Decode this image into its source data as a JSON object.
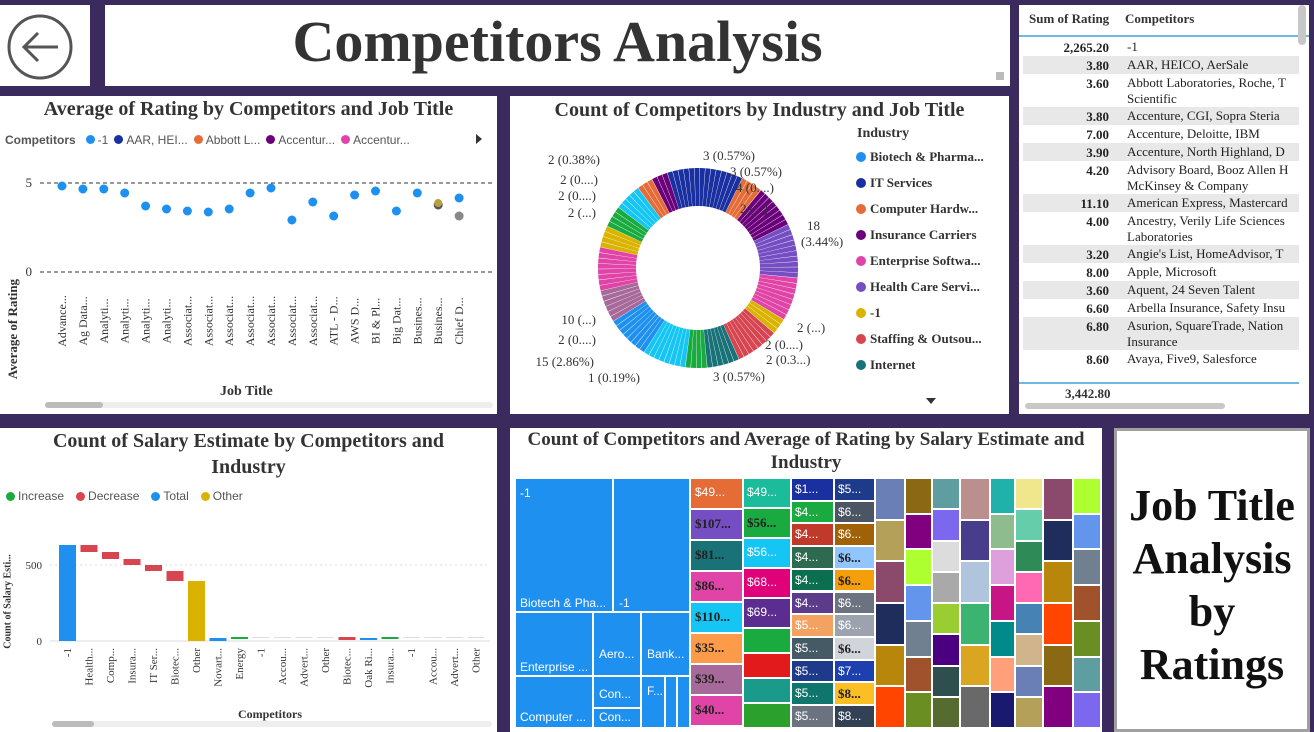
{
  "header": {
    "back_icon": "arrow-left-circle-icon",
    "title": "Competitors Analysis"
  },
  "scatter": {
    "title": "Average of Rating by Competitors and Job Title",
    "legend_label": "Competitors",
    "legend_items": [
      {
        "name": "-1",
        "color": "#1e90f0"
      },
      {
        "name": "AAR, HEI...",
        "color": "#1a2fa0"
      },
      {
        "name": "Abbott L...",
        "color": "#e66c37"
      },
      {
        "name": "Accentur...",
        "color": "#6b007b"
      },
      {
        "name": "Accentur...",
        "color": "#e044a7"
      }
    ],
    "ylabel": "Average of Rating",
    "xlabel": "Job Title",
    "yticks": [
      "5",
      "0"
    ],
    "categories": [
      "Advance...",
      "Ag Data...",
      "Analyti...",
      "Analyti...",
      "Analyti...",
      "Analyti...",
      "Associat...",
      "Associat...",
      "Associat...",
      "Associat...",
      "Associat...",
      "Associat...",
      "Associat...",
      "ATL - D...",
      "AWS D...",
      "BI & Pl...",
      "Big Dat...",
      "Busines...",
      "Busines...",
      "Chief D..."
    ]
  },
  "donut": {
    "title": "Count of Competitors by Industry and Job Title",
    "legend_title": "Industry",
    "legend_items": [
      {
        "name": "Biotech & Pharma...",
        "color": "#1e90f0"
      },
      {
        "name": "IT Services",
        "color": "#1a2fa0"
      },
      {
        "name": "Computer Hardw...",
        "color": "#e66c37"
      },
      {
        "name": "Insurance Carriers",
        "color": "#6b007b"
      },
      {
        "name": "Enterprise Softwa...",
        "color": "#e044a7"
      },
      {
        "name": "Health Care Servi...",
        "color": "#744ec2"
      },
      {
        "name": "-1",
        "color": "#d9b300"
      },
      {
        "name": "Staffing & Outsou...",
        "color": "#d64550"
      },
      {
        "name": "Internet",
        "color": "#197278"
      }
    ],
    "labels_left": [
      "2 (0.38%)",
      "2 (0....)",
      "2 (0....)",
      "2 (...)",
      "10 (...)",
      "2 (0....)",
      "15 (2.86%)",
      "1 (0.19%)"
    ],
    "labels_right": [
      "3 (0.57%)",
      "3 (0.57%)",
      "4 (0....)",
      "2 (...)",
      "18",
      "(3.44%)",
      "2 (...)",
      "2 (0....)",
      "2 (0.3...)",
      "3 (0.57%)"
    ]
  },
  "table": {
    "columns": [
      "Sum of Rating",
      "Competitors"
    ],
    "rows": [
      {
        "rating": "2,265.20",
        "competitors": "-1"
      },
      {
        "rating": "3.80",
        "competitors": "AAR, HEICO, AerSale"
      },
      {
        "rating": "3.60",
        "competitors": "Abbott Laboratories, Roche, T",
        "line2": "Scientific"
      },
      {
        "rating": "3.80",
        "competitors": "Accenture, CGI, Sopra Steria"
      },
      {
        "rating": "7.00",
        "competitors": "Accenture, Deloitte, IBM"
      },
      {
        "rating": "3.90",
        "competitors": "Accenture, North Highland, D"
      },
      {
        "rating": "4.20",
        "competitors": "Advisory Board, Booz Allen H",
        "line2": "McKinsey & Company"
      },
      {
        "rating": "11.10",
        "competitors": "American Express, Mastercard"
      },
      {
        "rating": "4.00",
        "competitors": "Ancestry, Verily Life Sciences",
        "line2": "Laboratories"
      },
      {
        "rating": "3.20",
        "competitors": "Angie's List, HomeAdvisor, T"
      },
      {
        "rating": "8.00",
        "competitors": "Apple, Microsoft"
      },
      {
        "rating": "3.60",
        "competitors": "Aquent, 24 Seven Talent"
      },
      {
        "rating": "6.60",
        "competitors": "Arbella Insurance, Safety Insu"
      },
      {
        "rating": "6.80",
        "competitors": "Asurion, SquareTrade, Nation",
        "line2": "Insurance"
      },
      {
        "rating": "8.60",
        "competitors": "Avaya, Five9, Salesforce"
      }
    ],
    "total": "3,442.80"
  },
  "waterfall": {
    "title": "Count of Salary Estimate by Competitors and Industry",
    "legend_items": [
      {
        "name": "Increase",
        "color": "#1aab40"
      },
      {
        "name": "Decrease",
        "color": "#d64550"
      },
      {
        "name": "Total",
        "color": "#1e90f0"
      },
      {
        "name": "Other",
        "color": "#d9b300"
      }
    ],
    "ylabel": "Count of Salary Esti...",
    "xlabel": "Competitors",
    "yticks": [
      "500",
      "0"
    ],
    "categories": [
      "-1",
      "Health...",
      "Comp...",
      "Insura...",
      "IT Ser...",
      "Biotec...",
      "Other",
      "Novart...",
      "Energy",
      "-1",
      "Accou...",
      "Advert...",
      "Other",
      "Biotec...",
      "Oak Ri...",
      "Insura...",
      "-1",
      "Accou...",
      "Advert...",
      "Other"
    ]
  },
  "treemap": {
    "title": "Count of Competitors and Average of Rating by Salary Estimate and Industry",
    "blocks": [
      {
        "label": "-1"
      },
      {
        "label": "Biotech & Pha..."
      },
      {
        "label": "-1"
      },
      {
        "label": "Enterprise ..."
      },
      {
        "label": "Aero..."
      },
      {
        "label": "Bank..."
      },
      {
        "label": "Con..."
      },
      {
        "label": "F..."
      },
      {
        "label": "Computer ..."
      },
      {
        "label": "Con..."
      }
    ],
    "salary_col1": [
      "$49...",
      "$107...",
      "$81...",
      "$86...",
      "$110...",
      "$35...",
      "$39...",
      "$40..."
    ],
    "salary_col2": [
      "$49...",
      "$56...",
      "$56...",
      "$68...",
      "$69..."
    ],
    "salary_col3": [
      "$1...",
      "$4...",
      "$4...",
      "$4...",
      "$4...",
      "$4...",
      "$5...",
      "$5...",
      "$5...",
      "$5...",
      "$5..."
    ],
    "salary_col4": [
      "$5...",
      "$6...",
      "$6...",
      "$6...",
      "$6...",
      "$6...",
      "$6...",
      "$6...",
      "$7...",
      "$8...",
      "$8..."
    ]
  },
  "job_title_card": {
    "text": "Job Title Analysis by Ratings"
  }
}
